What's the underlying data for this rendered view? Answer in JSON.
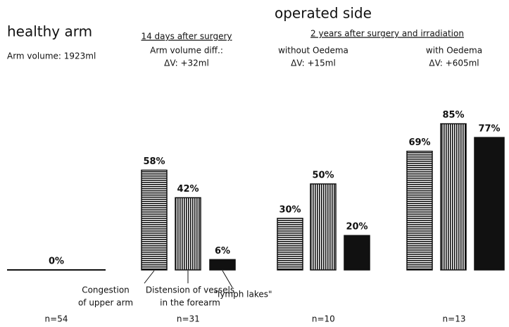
{
  "chart_data": {
    "type": "bar",
    "headings": [
      "healthy arm",
      "operated side"
    ],
    "notes": [
      {
        "lines": [
          "Arm volume: 1923ml"
        ]
      },
      {
        "title": "14 days after surgery",
        "lines": [
          "Arm volume diff.:",
          "ΔV: +32ml"
        ]
      },
      {
        "title": "2 years after surgery and irradiation"
      },
      {
        "lines": [
          "without Oedema",
          "ΔV: +15ml"
        ]
      },
      {
        "lines": [
          "with Oedema",
          "ΔV: +605ml"
        ]
      }
    ],
    "series_names": [
      [
        "Congestion",
        "of upper arm"
      ],
      [
        "Distension of vessels",
        "in the forearm"
      ],
      [
        "\"lymph lakes\""
      ]
    ],
    "groups": [
      {
        "label": "n=54",
        "values": [
          0
        ],
        "value_labels": [
          "0%"
        ]
      },
      {
        "label": "n=31",
        "values": [
          58,
          42,
          6
        ],
        "value_labels": [
          "58%",
          "42%",
          "6%"
        ]
      },
      {
        "label": "n=10",
        "values": [
          30,
          50,
          20
        ],
        "value_labels": [
          "30%",
          "50%",
          "20%"
        ]
      },
      {
        "label": "n=13",
        "values": [
          69,
          85,
          77
        ],
        "value_labels": [
          "69%",
          "85%",
          "77%"
        ]
      }
    ]
  }
}
